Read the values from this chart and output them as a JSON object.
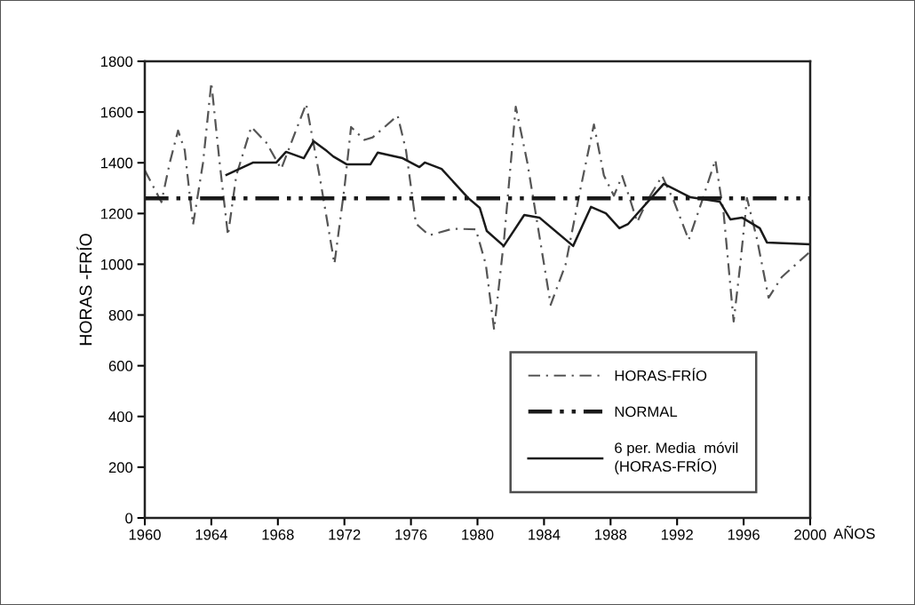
{
  "chart_data": {
    "type": "line",
    "xlabel": "AÑOS",
    "ylabel": "HORAS -FRÍO",
    "xlim": [
      1960,
      2000
    ],
    "xticks": [
      1960,
      1964,
      1968,
      1972,
      1976,
      1980,
      1984,
      1988,
      1992,
      1996,
      2000
    ],
    "ylim": [
      0,
      1800
    ],
    "yticks": [
      0,
      200,
      400,
      600,
      800,
      1000,
      1200,
      1400,
      1600,
      1800
    ],
    "grid": false,
    "legend": "bottom right",
    "marker": "none",
    "series": [
      {
        "name": "HORAS-FRÍO",
        "color": "#555555",
        "line_style": "dashdot",
        "x": [
          1960,
          1961.0,
          1961.5,
          1962.0,
          1962.4,
          1962.9,
          1963.5,
          1964.0,
          1964.5,
          1965.0,
          1965.5,
          1966.4,
          1967.3,
          1968.2,
          1969.7,
          1970.5,
          1971.4,
          1972.0,
          1972.4,
          1973.2,
          1973.7,
          1975.2,
          1975.7,
          1976.3,
          1977.1,
          1978.5,
          1979.9,
          1980.5,
          1981.0,
          1981.6,
          1982.3,
          1983.0,
          1984.4,
          1985.3,
          1986.2,
          1987.0,
          1987.6,
          1988.2,
          1988.7,
          1989.2,
          1989.6,
          1990.2,
          1991.1,
          1991.8,
          1992.7,
          1993.5,
          1994.3,
          1994.8,
          1995.4,
          1995.8,
          1996.2,
          1996.8,
          1997.5,
          1998.3,
          2000
        ],
        "values": [
          1370,
          1245,
          1400,
          1527,
          1450,
          1156,
          1400,
          1716,
          1400,
          1114,
          1350,
          1541,
          1480,
          1376,
          1632,
          1350,
          1002,
          1300,
          1541,
          1490,
          1500,
          1586,
          1450,
          1160,
          1114,
          1140,
          1138,
          1000,
          742,
          1100,
          1621,
          1400,
          840,
          1000,
          1300,
          1551,
          1350,
          1270,
          1348,
          1250,
          1166,
          1250,
          1348,
          1250,
          1096,
          1250,
          1411,
          1200,
          774,
          1000,
          1261,
          1100,
          868,
          950,
          1050
        ]
      },
      {
        "name": "NORMAL",
        "color": "#1a1a1a",
        "line_style": "dashdotdot",
        "x": [
          1960,
          2000
        ],
        "values": [
          1260,
          1260
        ]
      },
      {
        "name": "6 per. Media  móvil\n(HORAS-FRÍO)",
        "color": "#1a1a1a",
        "line_style": "solid",
        "x": [
          1964.91,
          1966.52,
          1967.91,
          1968.49,
          1969.56,
          1970.15,
          1970.95,
          1971.33,
          1972.13,
          1973.57,
          1974.0,
          1975.5,
          1976.51,
          1976.83,
          1977.84,
          1979.44,
          1980.14,
          1980.56,
          1981.58,
          1982.81,
          1983.72,
          1985.75,
          1986.82,
          1987.72,
          1988.53,
          1989.06,
          1991.2,
          1992.8,
          1994.56,
          1995.2,
          1995.9,
          1996.97,
          1997.4,
          2000
        ],
        "values": [
          1352,
          1401,
          1401,
          1443,
          1418,
          1485,
          1446,
          1425,
          1394,
          1394,
          1440,
          1418,
          1383,
          1401,
          1376,
          1261,
          1222,
          1131,
          1072,
          1194,
          1184,
          1072,
          1226,
          1201,
          1142,
          1159,
          1317,
          1264,
          1247,
          1177,
          1184,
          1142,
          1086,
          1079
        ]
      }
    ]
  }
}
